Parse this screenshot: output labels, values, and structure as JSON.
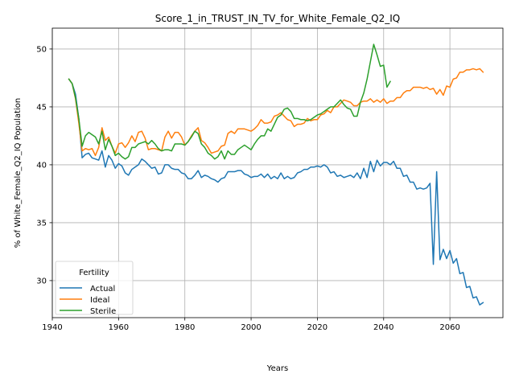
{
  "chart_data": {
    "type": "line",
    "title": "Score_1_in_TRUST_IN_TV_for_White_Female_Q2_IQ",
    "xlabel": "Years",
    "ylabel": "% of White_Female_Q2_IQ Population",
    "xlim": [
      1940,
      2076
    ],
    "ylim": [
      26.8,
      51.8
    ],
    "xticks": [
      1940,
      1960,
      1980,
      2000,
      2020,
      2040,
      2060
    ],
    "yticks": [
      30,
      35,
      40,
      45,
      50
    ],
    "grid": true,
    "legend": {
      "title": "Fertility",
      "placement": "lower-left"
    },
    "series": [
      {
        "name": "Actual",
        "color": "#1f77b4",
        "x": [
          1945,
          1946,
          1947,
          1948,
          1949,
          1950,
          1951,
          1952,
          1953,
          1954,
          1955,
          1956,
          1957,
          1958,
          1959,
          1960,
          1961,
          1962,
          1963,
          1964,
          1965,
          1966,
          1967,
          1968,
          1969,
          1970,
          1971,
          1972,
          1973,
          1974,
          1975,
          1976,
          1977,
          1978,
          1979,
          1980,
          1981,
          1982,
          1983,
          1984,
          1985,
          1986,
          1987,
          1988,
          1989,
          1990,
          1991,
          1992,
          1993,
          1994,
          1995,
          1996,
          1997,
          1998,
          1999,
          2000,
          2001,
          2002,
          2003,
          2004,
          2005,
          2006,
          2007,
          2008,
          2009,
          2010,
          2011,
          2012,
          2013,
          2014,
          2015,
          2016,
          2017,
          2018,
          2019,
          2020,
          2021,
          2022,
          2023,
          2024,
          2025,
          2026,
          2027,
          2028,
          2029,
          2030,
          2031,
          2032,
          2033,
          2034,
          2035,
          2036,
          2037,
          2038,
          2039,
          2040,
          2041,
          2042,
          2043,
          2044,
          2045,
          2046,
          2047,
          2048,
          2049,
          2050,
          2051,
          2052,
          2053,
          2054,
          2055,
          2056,
          2057,
          2058,
          2059,
          2060,
          2061,
          2062,
          2063,
          2064,
          2065,
          2066,
          2067,
          2068,
          2069,
          2070
        ],
        "values": [
          47.4,
          47.0,
          46.1,
          44.0,
          40.6,
          40.9,
          41.0,
          40.6,
          40.5,
          40.4,
          41.2,
          39.8,
          40.8,
          40.4,
          39.7,
          40.1,
          39.9,
          39.3,
          39.1,
          39.6,
          39.8,
          40.0,
          40.5,
          40.3,
          40.0,
          39.7,
          39.8,
          39.2,
          39.3,
          40.0,
          40.0,
          39.7,
          39.6,
          39.6,
          39.3,
          39.2,
          38.8,
          38.8,
          39.1,
          39.5,
          38.9,
          39.1,
          39.0,
          38.8,
          38.7,
          38.5,
          38.8,
          38.9,
          39.4,
          39.4,
          39.4,
          39.5,
          39.5,
          39.2,
          39.1,
          38.9,
          39.0,
          39.0,
          39.2,
          38.9,
          39.2,
          38.8,
          39.0,
          38.8,
          39.3,
          38.8,
          39.0,
          38.8,
          38.9,
          39.3,
          39.4,
          39.6,
          39.6,
          39.8,
          39.8,
          39.9,
          39.8,
          40.0,
          39.8,
          39.3,
          39.4,
          39.0,
          39.1,
          38.9,
          39.0,
          39.1,
          38.9,
          39.3,
          38.8,
          39.7,
          38.9,
          40.3,
          39.4,
          40.4,
          39.9,
          40.2,
          40.2,
          40.0,
          40.3,
          39.7,
          39.7,
          39.0,
          39.1,
          38.5,
          38.5,
          37.9,
          38.0,
          37.9,
          38.0,
          38.4,
          31.4,
          39.4,
          31.8,
          32.7,
          31.9,
          32.6,
          31.5,
          31.9,
          30.6,
          30.7,
          29.4,
          29.5,
          28.5,
          28.6,
          27.9,
          28.1
        ]
      },
      {
        "name": "Ideal",
        "color": "#ff7f0e",
        "x": [
          1945,
          1946,
          1947,
          1948,
          1949,
          1950,
          1951,
          1952,
          1953,
          1954,
          1955,
          1956,
          1957,
          1958,
          1959,
          1960,
          1961,
          1962,
          1963,
          1964,
          1965,
          1966,
          1967,
          1968,
          1969,
          1970,
          1971,
          1972,
          1973,
          1974,
          1975,
          1976,
          1977,
          1978,
          1979,
          1980,
          1981,
          1982,
          1983,
          1984,
          1985,
          1986,
          1987,
          1988,
          1989,
          1990,
          1991,
          1992,
          1993,
          1994,
          1995,
          1996,
          1997,
          1998,
          1999,
          2000,
          2001,
          2002,
          2003,
          2004,
          2005,
          2006,
          2007,
          2008,
          2009,
          2010,
          2011,
          2012,
          2013,
          2014,
          2015,
          2016,
          2017,
          2018,
          2019,
          2020,
          2021,
          2022,
          2023,
          2024,
          2025,
          2026,
          2027,
          2028,
          2029,
          2030,
          2031,
          2032,
          2033,
          2034,
          2035,
          2036,
          2037,
          2038,
          2039,
          2040,
          2041,
          2042,
          2043,
          2044,
          2045,
          2046,
          2047,
          2048,
          2049,
          2050,
          2051,
          2052,
          2053,
          2054,
          2055,
          2056,
          2057,
          2058,
          2059,
          2060,
          2061,
          2062,
          2063,
          2064,
          2065,
          2066,
          2067,
          2068,
          2069,
          2070
        ],
        "values": [
          47.4,
          47.0,
          45.7,
          43.6,
          41.2,
          41.4,
          41.3,
          41.4,
          40.8,
          41.5,
          43.2,
          42.1,
          42.4,
          41.6,
          41.0,
          41.8,
          41.9,
          41.5,
          41.9,
          42.5,
          42.0,
          42.8,
          42.9,
          42.3,
          41.3,
          41.4,
          41.4,
          41.3,
          41.2,
          42.4,
          42.9,
          42.3,
          42.8,
          42.8,
          42.4,
          41.7,
          42.0,
          42.5,
          42.9,
          43.2,
          42.1,
          41.9,
          41.5,
          41.0,
          41.1,
          41.2,
          41.6,
          41.7,
          42.7,
          42.9,
          42.7,
          43.1,
          43.1,
          43.1,
          43.0,
          42.9,
          43.1,
          43.4,
          43.9,
          43.6,
          43.6,
          43.7,
          44.2,
          44.3,
          44.5,
          44.2,
          43.9,
          43.8,
          43.3,
          43.5,
          43.5,
          43.6,
          44.0,
          43.8,
          43.9,
          43.9,
          44.3,
          44.4,
          44.7,
          44.5,
          45.0,
          45.0,
          45.3,
          45.6,
          45.5,
          45.4,
          45.1,
          45.1,
          45.4,
          45.5,
          45.5,
          45.7,
          45.4,
          45.6,
          45.4,
          45.7,
          45.3,
          45.5,
          45.5,
          45.8,
          45.8,
          46.2,
          46.4,
          46.4,
          46.7,
          46.7,
          46.7,
          46.6,
          46.7,
          46.5,
          46.6,
          46.1,
          46.5,
          46.0,
          46.8,
          46.7,
          47.4,
          47.5,
          48.0,
          48.0,
          48.2,
          48.2,
          48.3,
          48.2,
          48.3,
          48.0
        ]
      },
      {
        "name": "Sterile",
        "color": "#2ca02c",
        "x": [
          1945,
          1946,
          1947,
          1948,
          1949,
          1950,
          1951,
          1952,
          1953,
          1954,
          1955,
          1956,
          1957,
          1958,
          1959,
          1960,
          1961,
          1962,
          1963,
          1964,
          1965,
          1966,
          1967,
          1968,
          1969,
          1970,
          1971,
          1972,
          1973,
          1974,
          1975,
          1976,
          1977,
          1978,
          1979,
          1980,
          1981,
          1982,
          1983,
          1984,
          1985,
          1986,
          1987,
          1988,
          1989,
          1990,
          1991,
          1992,
          1993,
          1994,
          1995,
          1996,
          1997,
          1998,
          1999,
          2000,
          2001,
          2002,
          2003,
          2004,
          2005,
          2006,
          2007,
          2008,
          2009,
          2010,
          2011,
          2012,
          2013,
          2014,
          2015,
          2016,
          2017,
          2018,
          2019,
          2020,
          2021,
          2022,
          2023,
          2024,
          2025,
          2026,
          2027,
          2028,
          2029,
          2030,
          2031,
          2032,
          2033,
          2034,
          2035,
          2036,
          2037,
          2038,
          2039,
          2040,
          2041,
          2042,
          2043
        ],
        "values": [
          47.4,
          47.0,
          45.8,
          44.0,
          41.6,
          42.5,
          42.8,
          42.6,
          42.4,
          41.8,
          42.9,
          41.3,
          42.2,
          41.6,
          40.8,
          41.0,
          40.7,
          40.5,
          40.7,
          41.5,
          41.5,
          41.8,
          41.9,
          42.0,
          41.8,
          42.1,
          41.8,
          41.4,
          41.2,
          41.3,
          41.3,
          41.2,
          41.8,
          41.8,
          41.8,
          41.7,
          42.0,
          42.4,
          42.9,
          42.7,
          41.8,
          41.5,
          41.0,
          40.8,
          40.5,
          40.7,
          41.2,
          40.5,
          41.2,
          40.9,
          40.9,
          41.3,
          41.5,
          41.7,
          41.5,
          41.3,
          41.8,
          42.2,
          42.5,
          42.5,
          43.1,
          42.9,
          43.5,
          44.1,
          44.3,
          44.8,
          44.9,
          44.6,
          44.0,
          44.0,
          43.9,
          43.9,
          43.8,
          43.9,
          44.1,
          44.3,
          44.4,
          44.6,
          44.8,
          45.0,
          45.0,
          45.3,
          45.6,
          45.2,
          44.9,
          44.8,
          44.2,
          44.2,
          45.4,
          46.2,
          47.4,
          48.9,
          50.4,
          49.5,
          48.5,
          48.6,
          46.7,
          47.2,
          null
        ]
      }
    ]
  }
}
